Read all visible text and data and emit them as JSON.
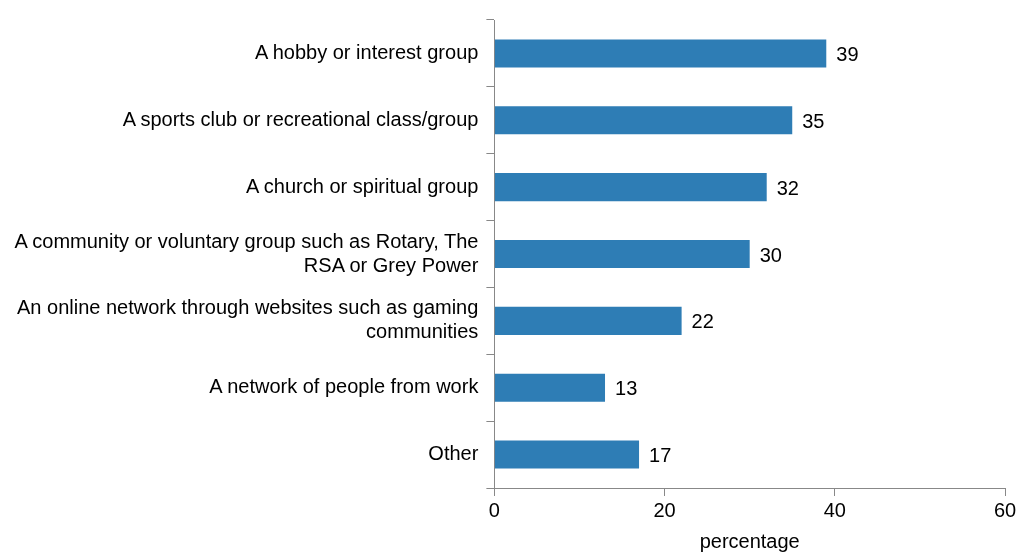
{
  "chart_data": {
    "type": "bar",
    "orientation": "horizontal",
    "xlabel": "percentage",
    "categories": [
      "A hobby or interest group",
      "A sports club or recreational class/group",
      "A church or spiritual group",
      "A community or voluntary group such as Rotary, The RSA or Grey Power",
      "An online network through websites such as gaming communities",
      "A network of people from work",
      "Other"
    ],
    "values": [
      39,
      35,
      32,
      30,
      22,
      13,
      17
    ],
    "color": "#2e7db5",
    "xlim": [
      0,
      60
    ],
    "xticks": [
      0,
      20,
      40,
      60
    ],
    "grid": false,
    "legend": false,
    "data_labels": true
  }
}
